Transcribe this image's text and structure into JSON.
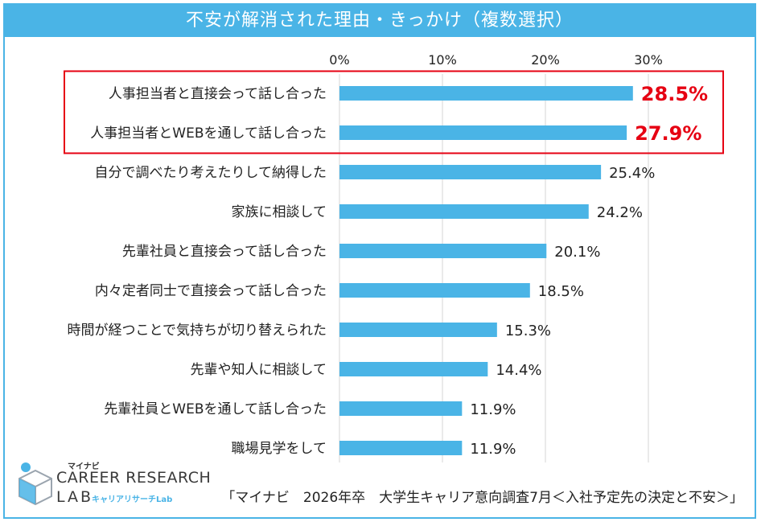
{
  "chart_data": {
    "type": "bar",
    "orientation": "horizontal",
    "title": "不安が解消された理由・きっかけ（複数選択）",
    "categories": [
      "人事担当者と直接会って話し合った",
      "人事担当者とWEBを通して話し合った",
      "自分で調べたり考えたりして納得した",
      "家族に相談して",
      "先輩社員と直接会って話し合った",
      "内々定者同士で直接会って話し合った",
      "時間が経つことで気持ちが切り替えられた",
      "先輩や知人に相談して",
      "先輩社員とWEBを通して話し合った",
      "職場見学をして"
    ],
    "values": [
      28.5,
      27.9,
      25.4,
      24.2,
      20.1,
      18.5,
      15.3,
      14.4,
      11.9,
      11.9
    ],
    "value_labels": [
      "28.5%",
      "27.9%",
      "25.4%",
      "24.2%",
      "20.1%",
      "18.5%",
      "15.3%",
      "14.4%",
      "11.9%",
      "11.9%"
    ],
    "highlighted_count": 2,
    "xlim": [
      0,
      35
    ],
    "xticks": [
      0,
      10,
      20,
      30
    ],
    "xtick_labels": [
      "0%",
      "10%",
      "20%",
      "30%"
    ],
    "grid": true,
    "colors": {
      "bar": "#4ab4e6",
      "highlight_label": "#e60012",
      "highlight_box": "#e60012",
      "grid": "#d4d4d4"
    }
  },
  "source": "「マイナビ　2026年卒　大学生キャリア意向調査7月＜入社予定先の決定と不安＞」",
  "logo": {
    "line1": "マイナビ",
    "line2": "CAREER RESEARCH",
    "line3": "LAB",
    "line4": "キャリアリサーチLab"
  }
}
